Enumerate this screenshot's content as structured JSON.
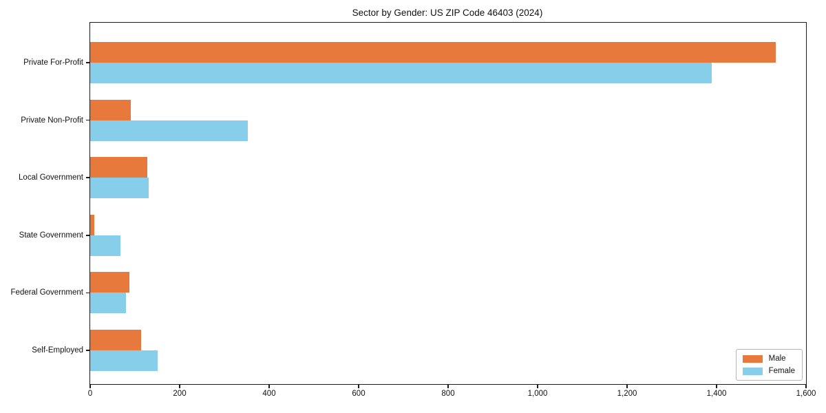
{
  "title": "Sector by Gender: US ZIP Code 46403 (2024)",
  "chart_data": {
    "type": "bar",
    "orientation": "horizontal",
    "title": "Sector by Gender: US ZIP Code 46403 (2024)",
    "categories": [
      "Private For-Profit",
      "Private Non-Profit",
      "Local Government",
      "State Government",
      "Federal Government",
      "Self-Employed"
    ],
    "series": [
      {
        "name": "Male",
        "color": "#e8793d",
        "values": [
          1532,
          90,
          127,
          9,
          87,
          114
        ]
      },
      {
        "name": "Female",
        "color": "#87ceeb",
        "values": [
          1389,
          353,
          131,
          68,
          80,
          150
        ]
      }
    ],
    "xlabel": "",
    "ylabel": "",
    "xlim": [
      0,
      1600
    ],
    "x_ticks": [
      0,
      200,
      400,
      600,
      800,
      1000,
      1200,
      1400,
      1600
    ],
    "x_tick_labels": [
      "0",
      "200",
      "400",
      "600",
      "800",
      "1,000",
      "1,200",
      "1,400",
      "1,600"
    ],
    "grid": false,
    "legend": {
      "position": "lower right",
      "items": [
        "Male",
        "Female"
      ]
    }
  }
}
